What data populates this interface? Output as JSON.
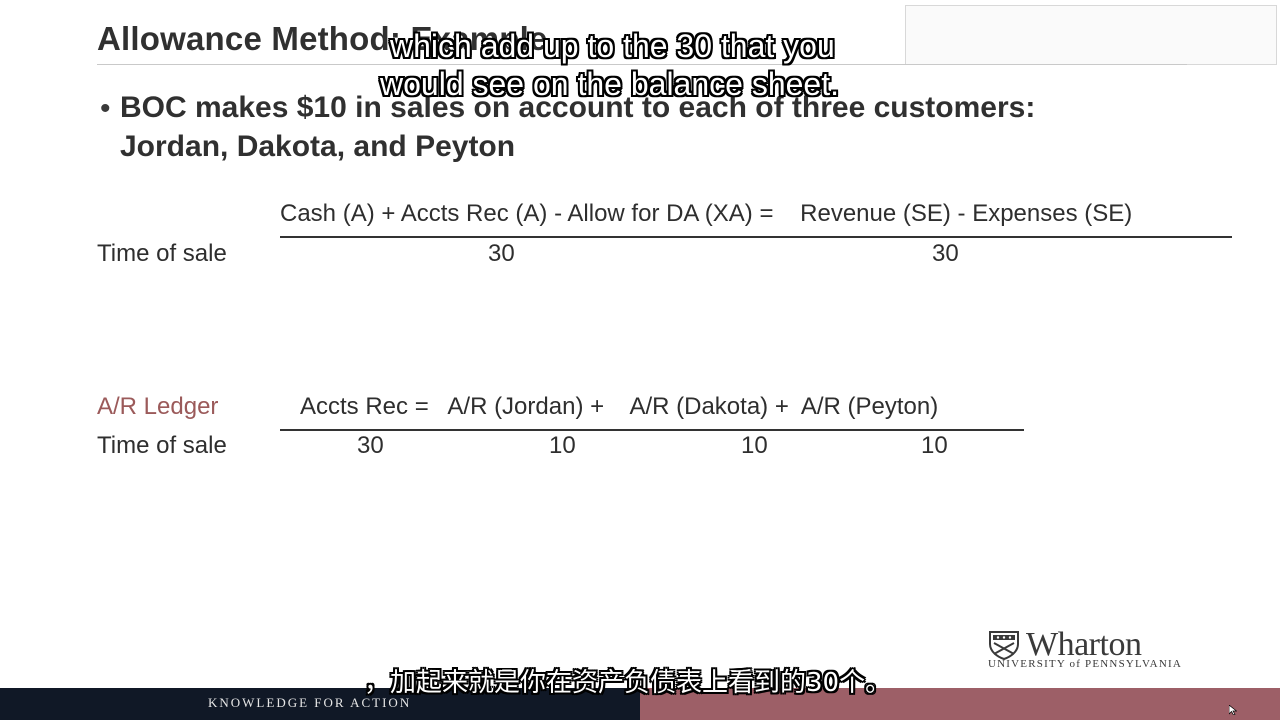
{
  "slide": {
    "title": "Allowance Method: Example",
    "bullet_line1": "BOC makes $10 in sales on account to each of three customers:",
    "bullet_line2": "Jordan, Dakota, and Peyton"
  },
  "equation_table": {
    "header": "Cash (A) + Accts Rec (A) - Allow for DA (XA) =    Revenue (SE) - Expenses (SE)",
    "row_label": "Time of sale",
    "accts_rec_value": "30",
    "revenue_value": "30"
  },
  "ledger_table": {
    "label": "A/R Ledger",
    "header": "Accts Rec =   A/R (Jordan) +    A/R (Dakota) +  A/R (Peyton)",
    "row_label": "Time of sale",
    "values": [
      "30",
      "10",
      "10",
      "10"
    ]
  },
  "subtitles": {
    "english_line1": "which add up to the 30 that you",
    "english_line2": "would see on the balance sheet.",
    "chinese": "，加起来就是你在资产负债表上看到的30个。"
  },
  "logo": {
    "wordmark": "Wharton",
    "subline": "UNIVERSITY of PENNSYLVANIA"
  },
  "footer": {
    "tagline": "KNOWLEDGE FOR ACTION"
  },
  "colors": {
    "footer_navy": "#101826",
    "footer_maroon": "#9d5f67",
    "ledger_label": "#9b5a5a"
  }
}
